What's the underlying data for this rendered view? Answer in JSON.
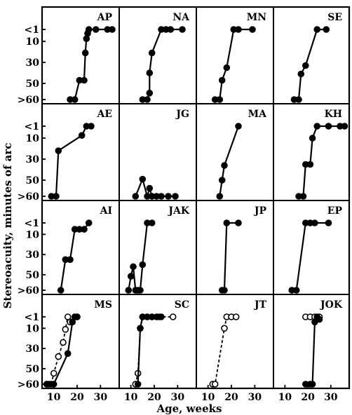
{
  "chart_data": {
    "type": "line",
    "ylabel": "Stereoacuity, minutes of arc",
    "xlabel": "Age, weeks",
    "y_tick_labels": [
      "<1",
      "10",
      "30",
      "50",
      ">60"
    ],
    "y_ticks": [
      1,
      10,
      30,
      50,
      60
    ],
    "x_tick_labels": [
      "10",
      "20",
      "30"
    ],
    "x_ticks": [
      10,
      20,
      30
    ],
    "xlim": [
      5,
      38
    ],
    "grid": false,
    "panels": [
      {
        "name": "AP",
        "series": [
          {
            "style": "solid",
            "marker": "filled",
            "points": [
              [
                17,
                60
              ],
              [
                19,
                60
              ],
              [
                21,
                47
              ],
              [
                23,
                47
              ],
              [
                23.5,
                21
              ],
              [
                24,
                8
              ],
              [
                24.5,
                4
              ],
              [
                25,
                1
              ],
              [
                28,
                1
              ],
              [
                33,
                1
              ],
              [
                35,
                1
              ]
            ]
          }
        ]
      },
      {
        "name": "NA",
        "series": [
          {
            "style": "solid",
            "marker": "filled",
            "points": [
              [
                15,
                60
              ],
              [
                17,
                60
              ],
              [
                18,
                56
              ],
              [
                18,
                40
              ],
              [
                19,
                21
              ],
              [
                23,
                1
              ],
              [
                25,
                1
              ],
              [
                27,
                1
              ],
              [
                32,
                1
              ]
            ]
          }
        ]
      },
      {
        "name": "MN",
        "series": [
          {
            "style": "solid",
            "marker": "filled",
            "points": [
              [
                13,
                60
              ],
              [
                15,
                60
              ],
              [
                16,
                47
              ],
              [
                18,
                35
              ],
              [
                21,
                1
              ],
              [
                23,
                1
              ],
              [
                29,
                1
              ]
            ]
          }
        ]
      },
      {
        "name": "SE",
        "series": [
          {
            "style": "solid",
            "marker": "filled",
            "points": [
              [
                14,
                60
              ],
              [
                16,
                60
              ],
              [
                17,
                41
              ],
              [
                19,
                33
              ],
              [
                24,
                1
              ],
              [
                28,
                1
              ]
            ]
          }
        ]
      },
      {
        "name": "AE",
        "series": [
          {
            "style": "solid",
            "marker": "filled",
            "points": [
              [
                9,
                60
              ],
              [
                11,
                60
              ],
              [
                12,
                22
              ],
              [
                22,
                8
              ],
              [
                24,
                1
              ],
              [
                26,
                1
              ]
            ]
          }
        ]
      },
      {
        "name": "JG",
        "series": [
          {
            "style": "solid",
            "marker": "filled",
            "points": [
              [
                12,
                60
              ],
              [
                15,
                49
              ],
              [
                17,
                60
              ],
              [
                18,
                55
              ],
              [
                19,
                60
              ],
              [
                21,
                60
              ],
              [
                23,
                60
              ],
              [
                26,
                60
              ],
              [
                29,
                60
              ]
            ]
          }
        ]
      },
      {
        "name": "MA",
        "series": [
          {
            "style": "solid",
            "marker": "filled",
            "points": [
              [
                15,
                60
              ],
              [
                16,
                50
              ],
              [
                17,
                36
              ],
              [
                23,
                1
              ]
            ]
          }
        ]
      },
      {
        "name": "KH",
        "series": [
          {
            "style": "solid",
            "marker": "filled",
            "points": [
              [
                16,
                60
              ],
              [
                18,
                60
              ],
              [
                19,
                35
              ],
              [
                21,
                35
              ],
              [
                22,
                10
              ],
              [
                24,
                1
              ],
              [
                29,
                1
              ],
              [
                34,
                1
              ],
              [
                36,
                1
              ]
            ]
          }
        ]
      },
      {
        "name": "AI",
        "series": [
          {
            "style": "solid",
            "marker": "filled",
            "points": [
              [
                13,
                60
              ],
              [
                15,
                35
              ],
              [
                17,
                35
              ],
              [
                19,
                6
              ],
              [
                21,
                6
              ],
              [
                23,
                6
              ],
              [
                25,
                1
              ]
            ]
          }
        ]
      },
      {
        "name": "JAK",
        "series": [
          {
            "style": "solid",
            "marker": "filled",
            "points": [
              [
                9,
                60
              ],
              [
                10,
                51
              ],
              [
                11,
                42
              ],
              [
                12,
                60
              ],
              [
                13,
                60
              ],
              [
                14,
                60
              ],
              [
                15,
                40
              ],
              [
                17,
                1
              ],
              [
                19,
                1
              ]
            ]
          }
        ]
      },
      {
        "name": "JP",
        "series": [
          {
            "style": "solid",
            "marker": "filled",
            "points": [
              [
                16,
                60
              ],
              [
                17,
                60
              ],
              [
                18,
                1
              ],
              [
                23,
                1
              ]
            ]
          }
        ]
      },
      {
        "name": "EP",
        "series": [
          {
            "style": "solid",
            "marker": "filled",
            "points": [
              [
                13,
                60
              ],
              [
                15,
                60
              ],
              [
                19,
                1
              ],
              [
                21,
                1
              ],
              [
                23,
                1
              ],
              [
                29,
                1
              ]
            ]
          }
        ]
      },
      {
        "name": "MS",
        "series": [
          {
            "style": "dashed",
            "marker": "open",
            "points": [
              [
                7,
                60
              ],
              [
                9,
                60
              ],
              [
                10,
                53
              ],
              [
                12,
                38
              ],
              [
                14,
                24
              ],
              [
                15,
                11
              ],
              [
                16,
                1
              ],
              [
                17,
                5
              ],
              [
                19,
                1
              ],
              [
                20,
                1
              ]
            ]
          },
          {
            "style": "solid",
            "marker": "filled",
            "points": [
              [
                7,
                60
              ],
              [
                8,
                60
              ],
              [
                10,
                60
              ],
              [
                16,
                35
              ],
              [
                18,
                5
              ],
              [
                19,
                1
              ],
              [
                20,
                1
              ]
            ]
          }
        ]
      },
      {
        "name": "SC",
        "series": [
          {
            "style": "dashed",
            "marker": "open",
            "points": [
              [
                12,
                60
              ],
              [
                13,
                53
              ],
              [
                14,
                10
              ],
              [
                15,
                1
              ],
              [
                17,
                1
              ],
              [
                19,
                1
              ],
              [
                22,
                1
              ],
              [
                28,
                1
              ]
            ]
          },
          {
            "style": "solid",
            "marker": "filled",
            "points": [
              [
                13,
                60
              ],
              [
                14,
                10
              ],
              [
                15,
                1
              ],
              [
                17,
                1
              ],
              [
                19,
                1
              ],
              [
                21,
                1
              ],
              [
                23,
                1
              ]
            ]
          }
        ]
      },
      {
        "name": "JT",
        "series": [
          {
            "style": "dashed",
            "marker": "open",
            "points": [
              [
                12,
                60
              ],
              [
                13,
                60
              ],
              [
                17,
                10
              ],
              [
                18,
                1
              ],
              [
                20,
                1
              ],
              [
                22,
                1
              ]
            ]
          }
        ]
      },
      {
        "name": "JOK",
        "series": [
          {
            "style": "dashed",
            "marker": "open",
            "points": [
              [
                19,
                1
              ],
              [
                21,
                1
              ],
              [
                23,
                1
              ],
              [
                25,
                1
              ]
            ]
          },
          {
            "style": "solid",
            "marker": "filled",
            "points": [
              [
                19,
                60
              ],
              [
                21,
                60
              ],
              [
                22,
                60
              ],
              [
                23,
                5
              ],
              [
                24,
                1
              ],
              [
                25,
                3
              ]
            ]
          }
        ]
      }
    ]
  }
}
